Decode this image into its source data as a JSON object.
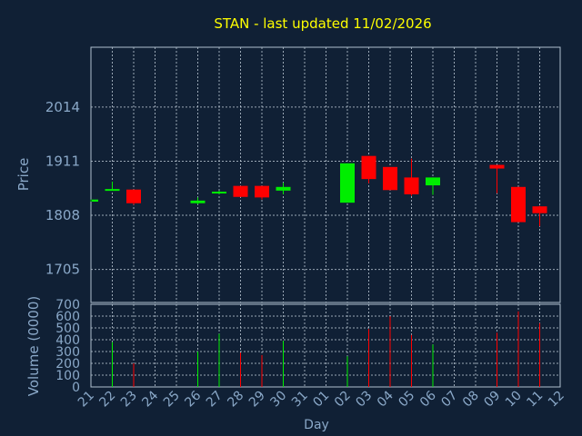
{
  "chart_data": {
    "type": "candlestick",
    "title": "STAN - last updated 11/02/2026",
    "xlabel": "Day",
    "ylabel": "Price",
    "volume_label": "Volume (0000)",
    "price_ticks": [
      "1705",
      "1808",
      "1911",
      "2014"
    ],
    "price_range": [
      1642,
      2128
    ],
    "volume_ticks": [
      "0",
      "100",
      "200",
      "300",
      "400",
      "500",
      "600",
      "700"
    ],
    "volume_range": [
      0,
      700
    ],
    "grid": true,
    "day_labels": [
      "21",
      "22",
      "23",
      "24",
      "25",
      "26",
      "27",
      "28",
      "29",
      "30",
      "31",
      "01",
      "02",
      "03",
      "04",
      "05",
      "06",
      "07",
      "08",
      "09",
      "10",
      "11",
      "12"
    ],
    "candles": [
      {
        "day": "21",
        "open": 1834,
        "close": 1838,
        "high": 1838,
        "low": 1834,
        "volume": 0
      },
      {
        "day": "22",
        "open": 1855,
        "close": 1858,
        "high": 1872,
        "low": 1855,
        "volume": 380
      },
      {
        "day": "23",
        "open": 1857,
        "close": 1831,
        "high": 1857,
        "low": 1828,
        "volume": 200
      },
      {
        "day": "26",
        "open": 1831,
        "close": 1836,
        "high": 1842,
        "low": 1829,
        "volume": 300
      },
      {
        "day": "27",
        "open": 1850,
        "close": 1853,
        "high": 1855,
        "low": 1848,
        "volume": 450
      },
      {
        "day": "28",
        "open": 1864,
        "close": 1843,
        "high": 1864,
        "low": 1843,
        "volume": 290
      },
      {
        "day": "29",
        "open": 1864,
        "close": 1842,
        "high": 1864,
        "low": 1838,
        "volume": 270
      },
      {
        "day": "30",
        "open": 1855,
        "close": 1862,
        "high": 1870,
        "low": 1848,
        "volume": 390
      },
      {
        "day": "02",
        "open": 1832,
        "close": 1907,
        "high": 1907,
        "low": 1832,
        "volume": 260
      },
      {
        "day": "03",
        "open": 1921,
        "close": 1877,
        "high": 1921,
        "low": 1869,
        "volume": 490
      },
      {
        "day": "04",
        "open": 1900,
        "close": 1856,
        "high": 1900,
        "low": 1856,
        "volume": 600
      },
      {
        "day": "05",
        "open": 1880,
        "close": 1848,
        "high": 1916,
        "low": 1845,
        "volume": 440
      },
      {
        "day": "06",
        "open": 1865,
        "close": 1880,
        "high": 1880,
        "low": 1847,
        "volume": 360
      },
      {
        "day": "09",
        "open": 1904,
        "close": 1897,
        "high": 1904,
        "low": 1850,
        "volume": 460
      },
      {
        "day": "10",
        "open": 1862,
        "close": 1795,
        "high": 1862,
        "low": 1795,
        "volume": 640
      },
      {
        "day": "11",
        "open": 1825,
        "close": 1812,
        "high": 1826,
        "low": 1787,
        "volume": 540
      }
    ],
    "up_color": "#00ee00",
    "down_color": "#ff0000",
    "title_color": "#ffff00",
    "label_color": "#8aa8c8",
    "background": "#102035"
  }
}
